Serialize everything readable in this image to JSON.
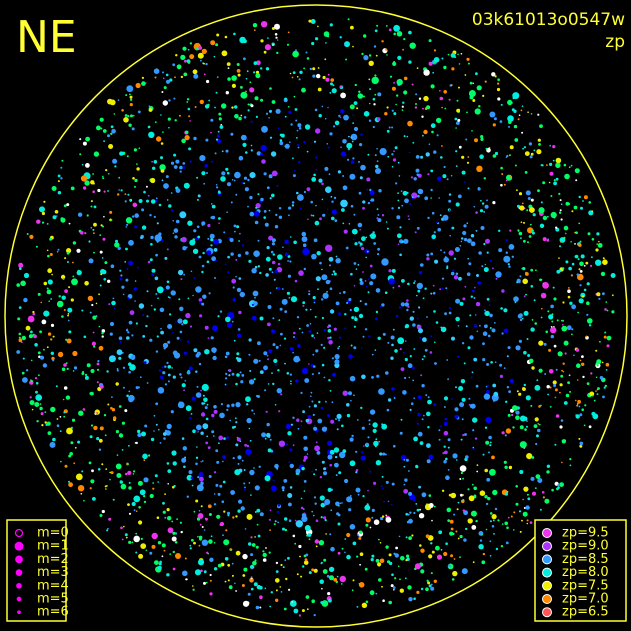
{
  "corner_label": "NE",
  "header": {
    "frame_id": "03k61013o0547w",
    "mode": "zp"
  },
  "magnitude_legend": {
    "color": "#ff00ff",
    "items": [
      "m=0",
      "m=1",
      "m=2",
      "m=3",
      "m=4",
      "m=5",
      "m=6"
    ]
  },
  "zp_legend": {
    "items": [
      {
        "label": "zp=9.5",
        "color": "#ee33ee"
      },
      {
        "label": "zp=9.0",
        "color": "#aa33ff"
      },
      {
        "label": "zp=8.5",
        "color": "#3399ff"
      },
      {
        "label": "zp=8.0",
        "color": "#00eedd"
      },
      {
        "label": "zp=7.5",
        "color": "#eeee00"
      },
      {
        "label": "zp=7.0",
        "color": "#ff8800"
      },
      {
        "label": "zp=6.5",
        "color": "#ff5555"
      }
    ]
  }
}
